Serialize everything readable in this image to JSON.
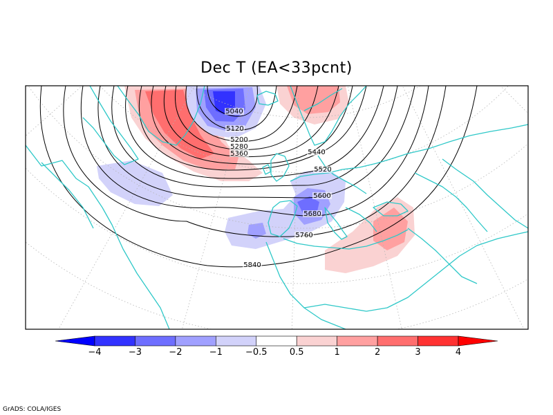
{
  "title": "Dec T (EA<33pcnt)",
  "credit": "GrADS: COLA/IGES",
  "colorbar": {
    "colors": [
      "#0000ff",
      "#3232ff",
      "#6e6eff",
      "#a0a0ff",
      "#d2d2fa",
      "#ffffff",
      "#fad2d2",
      "#ffa0a0",
      "#ff6e6e",
      "#ff3232",
      "#ff0000"
    ],
    "tick_labels": [
      "−4",
      "−3",
      "−2",
      "−1",
      "−0.5",
      "0.5",
      "1",
      "2",
      "3",
      "4"
    ]
  },
  "contour_labels": [
    "5040",
    "5120",
    "5200",
    "5280",
    "5360",
    "5440",
    "5520",
    "5600",
    "5680",
    "5760",
    "5840"
  ],
  "colors": {
    "coast": "#2ec8c8",
    "grid": "#b4b4b4",
    "contour": "#000000"
  }
}
